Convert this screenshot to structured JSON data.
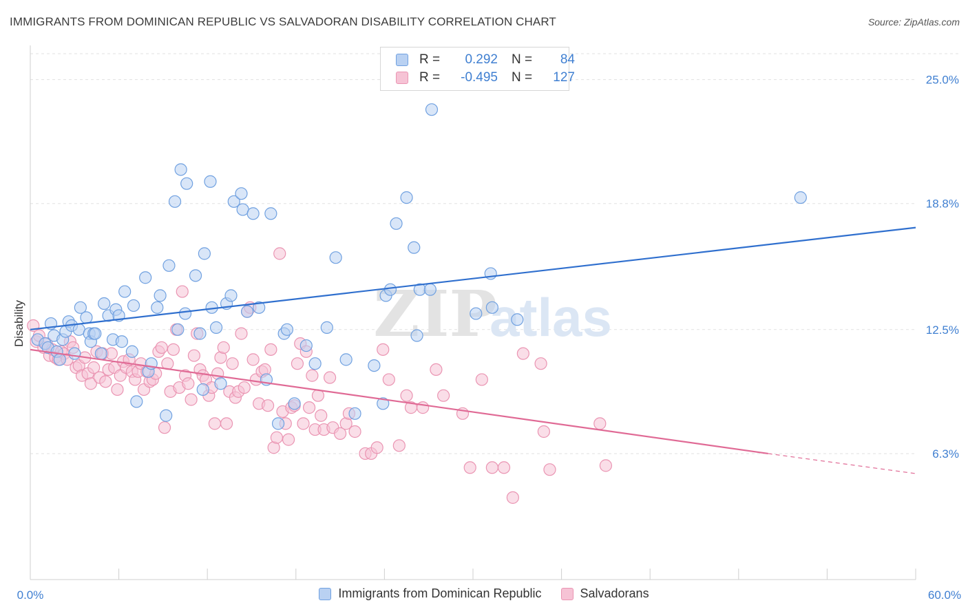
{
  "header": {
    "title": "IMMIGRANTS FROM DOMINICAN REPUBLIC VS SALVADORAN DISABILITY CORRELATION CHART",
    "source": "Source: ZipAtlas.com"
  },
  "watermark": {
    "zip": "ZIP",
    "atlas": "atlas"
  },
  "legend": {
    "rows": [
      {
        "r_label": "R =",
        "r_value": "0.292",
        "n_label": "N =",
        "n_value": "84"
      },
      {
        "r_label": "R =",
        "r_value": "-0.495",
        "n_label": "N =",
        "n_value": "127"
      }
    ]
  },
  "chart_data": {
    "type": "scatter",
    "title": "IMMIGRANTS FROM DOMINICAN REPUBLIC VS SALVADORAN DISABILITY CORRELATION CHART",
    "xlabel": "",
    "ylabel": "Disability",
    "xlim": [
      0,
      60
    ],
    "ylim": [
      0,
      26.5
    ],
    "x_tick_labels": [
      "0.0%",
      "60.0%"
    ],
    "y_ticks": [
      6.3,
      12.5,
      18.8,
      25.0
    ],
    "y_tick_labels": [
      "6.3%",
      "12.5%",
      "18.8%",
      "25.0%"
    ],
    "grid": true,
    "legend_position": "top-center",
    "series": [
      {
        "name": "Immigrants from Dominican Republic",
        "color": "#6fa0e0",
        "fill": "#b9d1f2",
        "line_color": "#2f6fce",
        "trend": {
          "x0": 0,
          "y0": 12.5,
          "x1": 60,
          "y1": 17.6
        },
        "points": [
          [
            0.5,
            12.0
          ],
          [
            1.0,
            11.8
          ],
          [
            1.2,
            11.6
          ],
          [
            1.4,
            12.8
          ],
          [
            1.6,
            12.2
          ],
          [
            1.8,
            11.4
          ],
          [
            2.0,
            11.0
          ],
          [
            2.2,
            12.0
          ],
          [
            2.4,
            12.4
          ],
          [
            2.6,
            12.9
          ],
          [
            2.8,
            12.7
          ],
          [
            3.0,
            11.3
          ],
          [
            3.3,
            12.5
          ],
          [
            3.4,
            13.6
          ],
          [
            3.8,
            13.1
          ],
          [
            4.0,
            12.3
          ],
          [
            4.1,
            11.9
          ],
          [
            4.3,
            12.3
          ],
          [
            4.4,
            12.3
          ],
          [
            4.8,
            11.3
          ],
          [
            5.0,
            13.8
          ],
          [
            5.3,
            13.2
          ],
          [
            5.6,
            12.0
          ],
          [
            5.8,
            13.5
          ],
          [
            6.0,
            13.2
          ],
          [
            6.2,
            11.9
          ],
          [
            6.4,
            14.4
          ],
          [
            6.9,
            11.4
          ],
          [
            7.0,
            13.7
          ],
          [
            7.2,
            8.9
          ],
          [
            7.8,
            15.1
          ],
          [
            8.0,
            10.4
          ],
          [
            8.2,
            10.8
          ],
          [
            8.6,
            13.6
          ],
          [
            8.8,
            14.2
          ],
          [
            9.2,
            8.2
          ],
          [
            9.4,
            15.7
          ],
          [
            9.8,
            18.9
          ],
          [
            10.0,
            12.5
          ],
          [
            10.2,
            20.5
          ],
          [
            10.5,
            13.3
          ],
          [
            10.6,
            19.8
          ],
          [
            11.2,
            15.2
          ],
          [
            11.5,
            12.3
          ],
          [
            11.7,
            9.5
          ],
          [
            11.8,
            16.3
          ],
          [
            12.2,
            19.9
          ],
          [
            12.3,
            13.6
          ],
          [
            12.6,
            12.6
          ],
          [
            12.9,
            9.8
          ],
          [
            13.3,
            13.8
          ],
          [
            13.6,
            14.2
          ],
          [
            13.8,
            18.9
          ],
          [
            14.3,
            19.3
          ],
          [
            14.4,
            18.5
          ],
          [
            14.7,
            13.4
          ],
          [
            15.1,
            18.3
          ],
          [
            15.5,
            13.6
          ],
          [
            16.0,
            10.0
          ],
          [
            16.3,
            18.3
          ],
          [
            16.8,
            7.8
          ],
          [
            17.2,
            12.3
          ],
          [
            17.4,
            12.5
          ],
          [
            17.9,
            8.8
          ],
          [
            18.7,
            11.7
          ],
          [
            19.3,
            10.8
          ],
          [
            20.1,
            12.6
          ],
          [
            20.7,
            16.1
          ],
          [
            21.4,
            11.0
          ],
          [
            22.0,
            8.3
          ],
          [
            23.3,
            10.7
          ],
          [
            23.9,
            8.8
          ],
          [
            24.1,
            14.2
          ],
          [
            24.4,
            14.5
          ],
          [
            24.8,
            17.8
          ],
          [
            25.5,
            19.1
          ],
          [
            26.2,
            12.2
          ],
          [
            26.0,
            16.6
          ],
          [
            26.4,
            14.5
          ],
          [
            27.1,
            14.5
          ],
          [
            27.2,
            23.5
          ],
          [
            30.2,
            13.3
          ],
          [
            31.2,
            15.3
          ],
          [
            31.3,
            13.6
          ],
          [
            33.0,
            13.0
          ],
          [
            52.2,
            19.1
          ]
        ]
      },
      {
        "name": "Salvadorans",
        "color": "#ea94b2",
        "fill": "#f6c3d5",
        "line_color": "#e06a95",
        "trend": {
          "x0": 0,
          "y0": 11.5,
          "x1": 50,
          "y1": 6.3
        },
        "trend_dashed": {
          "x0": 50,
          "y0": 6.3,
          "x1": 60,
          "y1": 5.3
        },
        "points": [
          [
            0.2,
            12.7
          ],
          [
            0.4,
            11.9
          ],
          [
            0.6,
            12.2
          ],
          [
            0.9,
            11.6
          ],
          [
            1.1,
            11.8
          ],
          [
            1.3,
            11.2
          ],
          [
            1.5,
            11.5
          ],
          [
            1.7,
            11.1
          ],
          [
            1.9,
            11.0
          ],
          [
            2.1,
            11.4
          ],
          [
            2.3,
            11.3
          ],
          [
            2.5,
            11.0
          ],
          [
            2.7,
            11.9
          ],
          [
            2.9,
            11.6
          ],
          [
            3.1,
            10.6
          ],
          [
            3.3,
            10.7
          ],
          [
            3.5,
            10.2
          ],
          [
            3.7,
            11.1
          ],
          [
            3.9,
            10.3
          ],
          [
            4.1,
            9.8
          ],
          [
            4.3,
            10.6
          ],
          [
            4.5,
            11.4
          ],
          [
            4.7,
            10.1
          ],
          [
            4.9,
            11.3
          ],
          [
            5.1,
            9.9
          ],
          [
            5.3,
            10.5
          ],
          [
            5.5,
            11.3
          ],
          [
            5.7,
            10.6
          ],
          [
            5.9,
            9.5
          ],
          [
            6.1,
            10.2
          ],
          [
            6.3,
            10.9
          ],
          [
            6.5,
            10.6
          ],
          [
            6.7,
            11.0
          ],
          [
            6.9,
            10.4
          ],
          [
            7.1,
            10.0
          ],
          [
            7.3,
            10.4
          ],
          [
            7.5,
            10.8
          ],
          [
            7.7,
            9.5
          ],
          [
            7.9,
            10.4
          ],
          [
            8.1,
            9.9
          ],
          [
            8.3,
            10.0
          ],
          [
            8.5,
            10.3
          ],
          [
            8.7,
            11.4
          ],
          [
            8.9,
            11.6
          ],
          [
            9.1,
            7.6
          ],
          [
            9.3,
            10.8
          ],
          [
            9.5,
            9.4
          ],
          [
            9.7,
            11.5
          ],
          [
            9.9,
            12.5
          ],
          [
            10.1,
            9.6
          ],
          [
            10.3,
            14.4
          ],
          [
            10.5,
            10.2
          ],
          [
            10.7,
            9.8
          ],
          [
            10.9,
            9.0
          ],
          [
            11.1,
            11.2
          ],
          [
            11.3,
            12.3
          ],
          [
            11.5,
            10.5
          ],
          [
            11.7,
            10.2
          ],
          [
            11.9,
            10.0
          ],
          [
            12.1,
            9.2
          ],
          [
            12.3,
            9.6
          ],
          [
            12.5,
            7.8
          ],
          [
            12.7,
            10.3
          ],
          [
            12.9,
            11.1
          ],
          [
            13.1,
            11.6
          ],
          [
            13.3,
            7.8
          ],
          [
            13.5,
            9.4
          ],
          [
            13.7,
            10.8
          ],
          [
            13.9,
            9.1
          ],
          [
            14.1,
            9.4
          ],
          [
            14.3,
            12.3
          ],
          [
            14.5,
            9.6
          ],
          [
            14.7,
            13.4
          ],
          [
            14.9,
            13.6
          ],
          [
            15.1,
            11.0
          ],
          [
            15.3,
            10.0
          ],
          [
            15.5,
            8.8
          ],
          [
            15.7,
            10.4
          ],
          [
            15.9,
            10.5
          ],
          [
            16.1,
            8.7
          ],
          [
            16.3,
            11.5
          ],
          [
            16.5,
            6.6
          ],
          [
            16.7,
            7.1
          ],
          [
            16.9,
            16.3
          ],
          [
            17.1,
            8.4
          ],
          [
            17.3,
            7.8
          ],
          [
            17.5,
            7.0
          ],
          [
            17.7,
            8.6
          ],
          [
            17.9,
            8.7
          ],
          [
            18.1,
            10.8
          ],
          [
            18.3,
            11.8
          ],
          [
            18.5,
            7.8
          ],
          [
            18.7,
            11.4
          ],
          [
            18.9,
            8.6
          ],
          [
            19.1,
            10.2
          ],
          [
            19.3,
            7.5
          ],
          [
            19.5,
            9.2
          ],
          [
            19.7,
            8.2
          ],
          [
            19.9,
            7.5
          ],
          [
            20.3,
            10.1
          ],
          [
            20.5,
            7.6
          ],
          [
            21.0,
            7.3
          ],
          [
            21.4,
            7.8
          ],
          [
            21.6,
            8.3
          ],
          [
            22.0,
            7.4
          ],
          [
            22.7,
            6.3
          ],
          [
            23.1,
            6.3
          ],
          [
            23.5,
            6.6
          ],
          [
            23.9,
            11.5
          ],
          [
            24.3,
            10.0
          ],
          [
            25.0,
            6.7
          ],
          [
            25.5,
            9.2
          ],
          [
            25.8,
            8.6
          ],
          [
            26.6,
            8.6
          ],
          [
            27.5,
            10.5
          ],
          [
            28.0,
            9.2
          ],
          [
            29.3,
            8.3
          ],
          [
            29.8,
            5.6
          ],
          [
            30.6,
            10.0
          ],
          [
            31.3,
            5.6
          ],
          [
            32.1,
            5.6
          ],
          [
            32.7,
            4.1
          ],
          [
            33.4,
            11.3
          ],
          [
            34.6,
            10.8
          ],
          [
            34.8,
            7.4
          ],
          [
            35.2,
            5.5
          ],
          [
            38.6,
            7.8
          ],
          [
            39.0,
            5.7
          ]
        ]
      }
    ]
  }
}
